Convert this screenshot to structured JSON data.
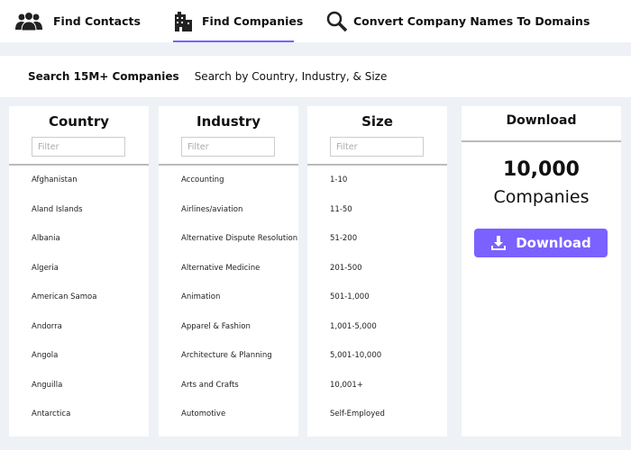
{
  "nav": {
    "tabs": [
      "Find Contacts",
      "Find Companies",
      "Convert Company Names To Domains"
    ]
  },
  "search_bar": {
    "title": "Search 15M+ Companies",
    "subtitle": "Search by Country, Industry, & Size"
  },
  "columns": [
    {
      "title": "Country",
      "filter": "Filter",
      "items": [
        "Afghanistan",
        "Aland Islands",
        "Albania",
        "Algeria",
        "American Samoa",
        "Andorra",
        "Angola",
        "Anguilla",
        "Antarctica"
      ]
    },
    {
      "title": "Industry",
      "filter": "Filter",
      "items": [
        "Accounting",
        "Airlines/aviation",
        "Alternative Dispute Resolution",
        "Alternative Medicine",
        "Animation",
        "Apparel & Fashion",
        "Architecture & Planning",
        "Arts and Crafts",
        "Automotive"
      ]
    },
    {
      "title": "Size",
      "filter": "Filter",
      "items": [
        "1-10",
        "11-50",
        "51-200",
        "201-500",
        "501-1,000",
        "1,001-5,000",
        "5,001-10,000",
        "10,001+",
        "Self-Employed"
      ]
    }
  ],
  "download": {
    "title": "Download",
    "count": "10,000",
    "unit": "Companies",
    "button": "Download"
  }
}
